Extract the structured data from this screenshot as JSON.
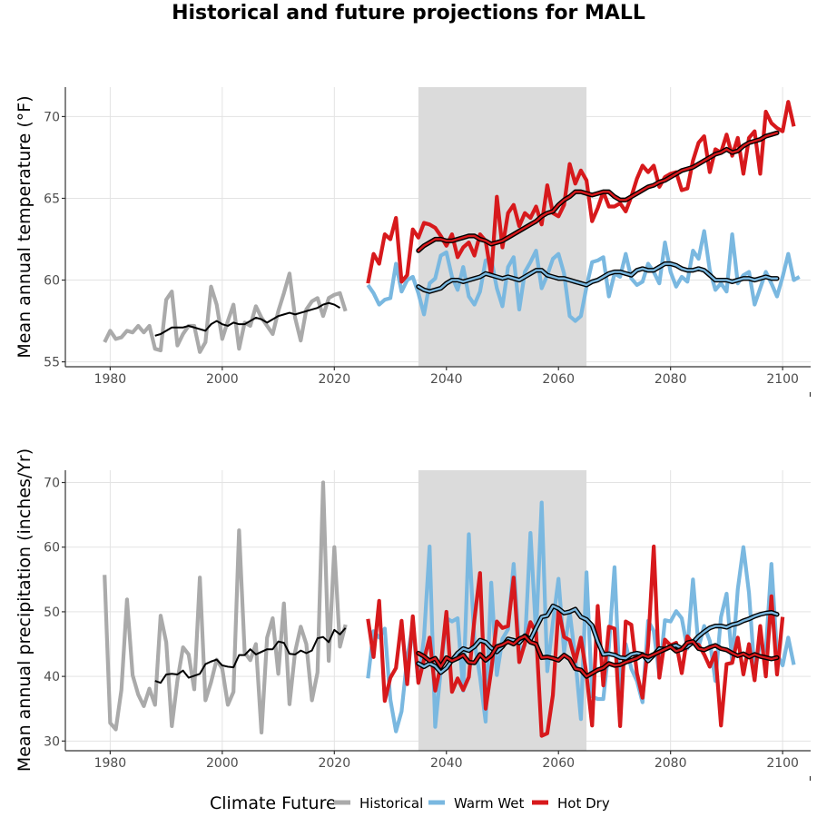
{
  "title": "Historical and future projections for MALL",
  "legend": {
    "title": "Climate Future",
    "items": [
      {
        "label": "Historical",
        "color": "#aaaaaa"
      },
      {
        "label": "Warm Wet",
        "color": "#7ab8e0"
      },
      {
        "label": "Hot Dry",
        "color": "#d7191c"
      }
    ]
  },
  "chart_data": [
    {
      "type": "line",
      "ylabel": "Mean annual temperature (°F)",
      "xlabel": "",
      "xlim": [
        1972,
        2105
      ],
      "ylim": [
        54.7,
        71.8
      ],
      "xticks": [
        1980,
        2000,
        2020,
        2040,
        2060,
        2080,
        2100
      ],
      "yticks": [
        55,
        60,
        65,
        70
      ],
      "shaded_period": [
        2035,
        2065
      ],
      "series": [
        {
          "name": "Historical",
          "color": "#aaaaaa",
          "x_start": 1979,
          "values": [
            56.2,
            56.9,
            56.4,
            56.5,
            56.9,
            56.8,
            57.2,
            56.8,
            57.2,
            55.8,
            55.7,
            58.8,
            59.3,
            56.0,
            56.7,
            57.2,
            57.2,
            55.6,
            56.2,
            59.6,
            58.5,
            56.4,
            57.5,
            58.5,
            55.8,
            57.4,
            57.2,
            58.4,
            57.7,
            57.2,
            56.7,
            58.1,
            59.2,
            60.4,
            57.7,
            56.3,
            58.2,
            58.7,
            58.9,
            57.8,
            58.9,
            59.1,
            59.2,
            58.1
          ]
        },
        {
          "name": "Historical 10-yr mean",
          "color": "#000000",
          "outline": false,
          "x_start": 1988,
          "values": [
            56.6,
            56.7,
            56.9,
            57.1,
            57.1,
            57.1,
            57.2,
            57.1,
            57.0,
            56.9,
            57.3,
            57.5,
            57.3,
            57.2,
            57.4,
            57.3,
            57.3,
            57.5,
            57.7,
            57.6,
            57.4,
            57.6,
            57.8,
            57.9,
            58.0,
            57.9,
            58.0,
            58.1,
            58.2,
            58.3,
            58.5,
            58.6,
            58.5,
            58.3
          ]
        },
        {
          "name": "Warm Wet",
          "color": "#7ab8e0",
          "x_start": 2026,
          "values": [
            59.7,
            59.2,
            58.5,
            58.8,
            58.9,
            61.0,
            59.3,
            60.0,
            60.2,
            59.2,
            57.9,
            59.8,
            60.1,
            61.5,
            61.7,
            60.2,
            59.4,
            60.8,
            59.0,
            58.5,
            59.3,
            61.2,
            61.3,
            59.5,
            58.4,
            60.8,
            61.4,
            58.2,
            60.5,
            61.1,
            61.8,
            59.5,
            60.3,
            61.3,
            61.6,
            60.4,
            57.8,
            57.5,
            57.8,
            59.6,
            61.1,
            61.2,
            61.4,
            59.0,
            60.4,
            60.2,
            61.6,
            60.1,
            59.7,
            59.9,
            61.0,
            60.5,
            59.8,
            62.3,
            60.5,
            59.6,
            60.2,
            59.9,
            61.8,
            61.3,
            63.0,
            60.6,
            59.4,
            59.8,
            59.3,
            62.8,
            59.8,
            60.3,
            60.5,
            58.5,
            59.5,
            60.5,
            59.8,
            59.0,
            60.2,
            61.6,
            60.0,
            60.2
          ]
        },
        {
          "name": "Hot Dry",
          "color": "#d7191c",
          "x_start": 2026,
          "values": [
            59.8,
            61.6,
            61.0,
            62.8,
            62.5,
            63.8,
            59.9,
            60.3,
            63.1,
            62.6,
            63.5,
            63.4,
            63.2,
            62.7,
            62.1,
            62.8,
            61.4,
            62.0,
            62.3,
            61.5,
            62.8,
            62.4,
            60.3,
            65.1,
            62.0,
            64.1,
            64.6,
            63.3,
            64.1,
            63.8,
            64.5,
            63.4,
            65.8,
            64.1,
            63.9,
            64.6,
            67.1,
            65.9,
            66.7,
            66.1,
            63.6,
            64.4,
            65.4,
            64.5,
            64.5,
            64.7,
            64.2,
            65.1,
            66.2,
            67.0,
            66.6,
            67.0,
            65.7,
            66.3,
            66.5,
            66.6,
            65.5,
            65.6,
            67.3,
            68.4,
            68.8,
            66.6,
            68.0,
            67.8,
            68.9,
            67.6,
            68.7,
            66.5,
            68.7,
            69.1,
            66.5,
            70.3,
            69.6,
            69.3,
            69.1,
            70.9,
            69.4
          ]
        },
        {
          "name": "Warm Wet 10-yr mean",
          "color": "#000000",
          "outline": true,
          "x_start": 2035,
          "values": [
            59.6,
            59.4,
            59.3,
            59.4,
            59.5,
            59.8,
            60.0,
            60.0,
            59.9,
            60.0,
            60.1,
            60.2,
            60.4,
            60.3,
            60.2,
            60.1,
            60.2,
            60.1,
            60.0,
            60.2,
            60.4,
            60.6,
            60.6,
            60.3,
            60.2,
            60.1,
            60.1,
            60.0,
            59.9,
            59.8,
            59.7,
            59.9,
            60.0,
            60.2,
            60.4,
            60.5,
            60.5,
            60.4,
            60.3,
            60.6,
            60.7,
            60.6,
            60.6,
            60.8,
            61.0,
            61.0,
            60.9,
            60.7,
            60.6,
            60.6,
            60.7,
            60.6,
            60.3,
            60.0,
            60.0,
            60.0,
            59.9,
            60.0,
            60.1,
            60.1,
            60.0,
            60.1,
            60.2,
            60.1,
            60.1
          ]
        },
        {
          "name": "Hot Dry 10-yr mean",
          "color": "#d7191c",
          "outline": true,
          "x_start": 2035,
          "values": [
            61.8,
            62.1,
            62.3,
            62.5,
            62.5,
            62.4,
            62.4,
            62.5,
            62.6,
            62.7,
            62.7,
            62.5,
            62.4,
            62.2,
            62.3,
            62.4,
            62.6,
            62.8,
            63.0,
            63.2,
            63.4,
            63.6,
            63.9,
            64.1,
            64.2,
            64.6,
            64.9,
            65.1,
            65.4,
            65.4,
            65.3,
            65.2,
            65.3,
            65.4,
            65.4,
            65.1,
            64.9,
            64.9,
            65.1,
            65.3,
            65.5,
            65.7,
            65.8,
            66.0,
            66.1,
            66.3,
            66.5,
            66.7,
            66.8,
            66.9,
            67.1,
            67.3,
            67.5,
            67.7,
            67.8,
            68.0,
            67.8,
            67.9,
            68.2,
            68.4,
            68.5,
            68.6,
            68.8,
            68.9,
            69.0
          ]
        }
      ]
    },
    {
      "type": "line",
      "ylabel": "Mean annual precipitation (inches/Yr)",
      "xlabel": "",
      "xlim": [
        1972,
        2105
      ],
      "ylim": [
        28.5,
        71.9
      ],
      "xticks": [
        1980,
        2000,
        2020,
        2040,
        2060,
        2080,
        2100
      ],
      "yticks": [
        30,
        40,
        50,
        60,
        70
      ],
      "shaded_period": [
        2035,
        2065
      ],
      "series": [
        {
          "name": "Historical",
          "color": "#aaaaaa",
          "x_start": 1979,
          "values": [
            55.7,
            32.8,
            31.8,
            37.9,
            51.9,
            40.2,
            37.2,
            35.4,
            38.1,
            35.6,
            49.4,
            45.3,
            32.3,
            39.4,
            44.5,
            43.4,
            38.0,
            55.3,
            36.3,
            39.1,
            42.6,
            41.2,
            35.6,
            37.6,
            62.6,
            43.7,
            42.5,
            45.0,
            31.3,
            46.0,
            49.0,
            40.4,
            51.3,
            35.7,
            43.8,
            47.7,
            45.0,
            36.3,
            40.6,
            70.0,
            42.4,
            60.0,
            44.6,
            48.0
          ]
        },
        {
          "name": "Historical 10-yr mean",
          "color": "#000000",
          "outline": false,
          "x_start": 1988,
          "values": [
            39.3,
            39.0,
            40.3,
            40.4,
            40.3,
            40.9,
            39.8,
            40.1,
            40.4,
            41.9,
            42.3,
            42.6,
            41.7,
            41.5,
            41.4,
            43.3,
            43.3,
            44.2,
            43.4,
            43.8,
            44.2,
            44.2,
            45.4,
            45.2,
            43.5,
            43.4,
            44.0,
            43.6,
            44.0,
            45.9,
            46.1,
            45.3,
            47.2,
            46.5,
            47.5
          ]
        },
        {
          "name": "Warm Wet",
          "color": "#7ab8e0",
          "x_start": 2026,
          "values": [
            39.7,
            47.0,
            46.0,
            47.4,
            36.4,
            31.5,
            34.6,
            42.8,
            48.0,
            39.1,
            46.0,
            60.1,
            32.2,
            41.0,
            49.0,
            48.5,
            49.0,
            37.8,
            62.0,
            45.4,
            39.9,
            33.0,
            54.5,
            40.2,
            45.8,
            47.3,
            57.4,
            44.2,
            44.8,
            62.2,
            46.5,
            66.9,
            40.8,
            48.3,
            55.1,
            43.8,
            50.0,
            42.8,
            33.4,
            56.1,
            36.9,
            36.5,
            36.5,
            44.6,
            56.9,
            37.4,
            45.0,
            41.2,
            39.3,
            36.0,
            48.6,
            47.0,
            40.1,
            48.7,
            48.5,
            50.1,
            49.0,
            44.3,
            55.0,
            44.5,
            47.8,
            45.5,
            39.3,
            49.2,
            52.8,
            42.1,
            53.5,
            60.0,
            52.9,
            40.6,
            45.2,
            44.0,
            57.4,
            43.5,
            41.7,
            46.0,
            41.8
          ]
        },
        {
          "name": "Hot Dry",
          "color": "#d7191c",
          "x_start": 2026,
          "values": [
            48.9,
            43.0,
            51.7,
            36.2,
            39.8,
            41.3,
            48.6,
            38.8,
            49.3,
            39.0,
            42.6,
            46.0,
            37.8,
            41.7,
            50.0,
            37.6,
            39.7,
            37.9,
            39.9,
            48.8,
            56.0,
            35.0,
            40.9,
            48.5,
            47.5,
            47.8,
            55.3,
            42.2,
            45.1,
            48.4,
            46.8,
            30.8,
            31.2,
            37.1,
            50.4,
            46.1,
            45.6,
            42.3,
            46.0,
            40.3,
            32.4,
            50.9,
            38.6,
            47.7,
            47.4,
            32.3,
            48.5,
            48.0,
            40.5,
            36.7,
            44.9,
            60.1,
            39.8,
            45.7,
            44.8,
            45.2,
            40.5,
            46.2,
            45.1,
            44.9,
            43.4,
            41.5,
            43.7,
            32.4,
            41.9,
            42.1,
            46.0,
            40.3,
            45.0,
            39.4,
            47.8,
            40.0,
            52.4,
            40.3,
            49.2
          ]
        },
        {
          "name": "Warm Wet 10-yr mean",
          "color": "#000000",
          "outline": true,
          "x_start": 2035,
          "values": [
            42.0,
            41.5,
            42.0,
            41.6,
            40.6,
            41.3,
            42.5,
            43.6,
            44.3,
            44.0,
            44.6,
            45.6,
            45.3,
            44.4,
            43.8,
            44.6,
            45.8,
            45.6,
            45.2,
            46.3,
            45.7,
            47.5,
            49.2,
            49.4,
            50.9,
            50.5,
            49.8,
            50.0,
            50.4,
            49.2,
            48.8,
            47.9,
            45.4,
            43.4,
            43.5,
            43.3,
            42.9,
            42.8,
            43.4,
            43.6,
            43.4,
            42.4,
            43.3,
            44.3,
            44.2,
            44.6,
            44.8,
            44.3,
            44.6,
            45.3,
            46.2,
            46.9,
            47.5,
            47.8,
            47.8,
            47.6,
            48.0,
            48.2,
            48.6,
            48.9,
            49.3,
            49.6,
            49.8,
            49.9,
            49.6
          ]
        },
        {
          "name": "Hot Dry 10-yr mean",
          "color": "#d7191c",
          "outline": true,
          "x_start": 2035,
          "values": [
            43.6,
            43.1,
            42.4,
            42.8,
            41.5,
            42.9,
            42.4,
            42.8,
            43.3,
            42.2,
            42.1,
            43.4,
            42.5,
            43.2,
            44.6,
            44.9,
            45.4,
            45.0,
            45.8,
            46.2,
            45.3,
            45.0,
            42.9,
            43.0,
            42.8,
            42.5,
            43.3,
            42.7,
            41.2,
            41.0,
            40.0,
            40.5,
            41.0,
            41.3,
            42.0,
            41.7,
            41.8,
            42.2,
            42.5,
            42.8,
            43.3,
            43.0,
            43.4,
            43.8,
            44.2,
            44.6,
            43.9,
            44.2,
            45.2,
            45.4,
            44.3,
            44.1,
            44.5,
            44.8,
            44.3,
            44.1,
            43.6,
            43.2,
            43.5,
            43.0,
            43.4,
            43.1,
            42.9,
            42.7,
            42.9
          ]
        }
      ]
    }
  ]
}
